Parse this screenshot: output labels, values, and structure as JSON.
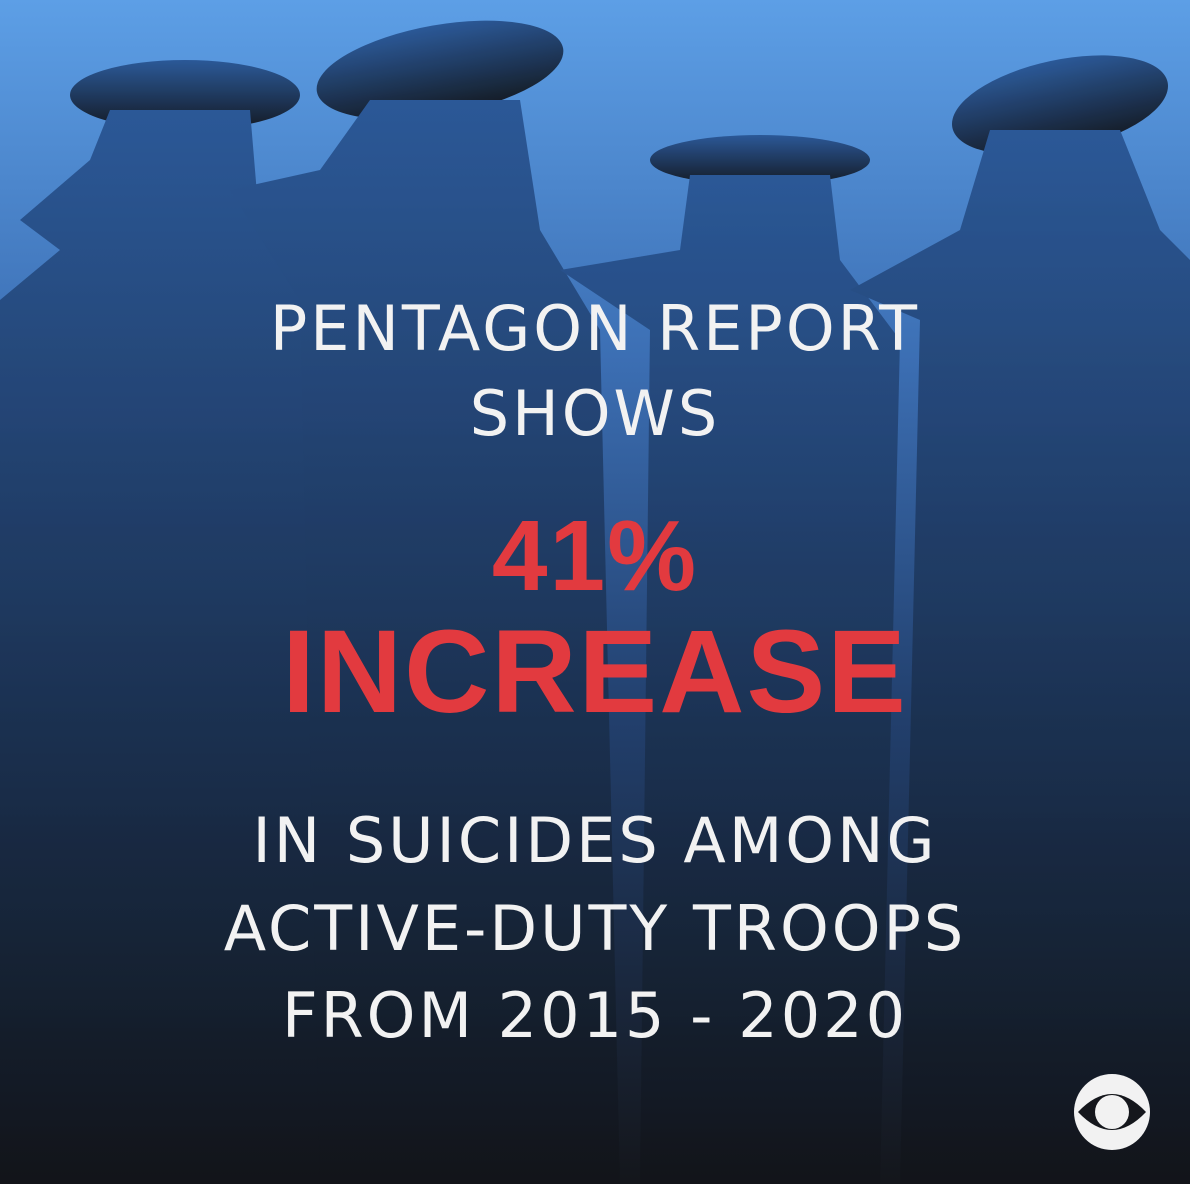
{
  "headline": {
    "lines": [
      "PENTAGON REPORT",
      "SHOWS"
    ]
  },
  "stat": {
    "lines": [
      "41%",
      "INCREASE"
    ]
  },
  "body": {
    "lines": [
      "IN SUICIDES AMONG",
      "ACTIVE-DUTY TROOPS",
      "FROM 2015 - 2020"
    ]
  }
}
